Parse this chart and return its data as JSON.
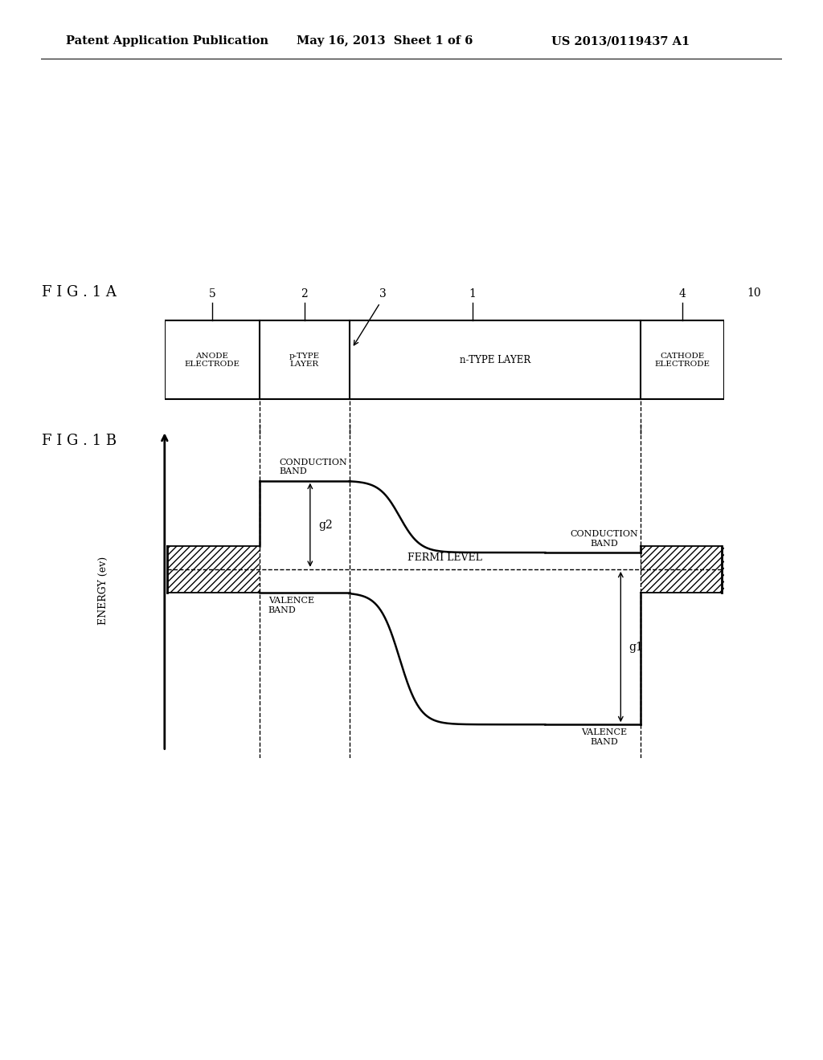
{
  "bg_color": "#ffffff",
  "text_color": "#000000",
  "header_left": "Patent Application Publication",
  "header_mid": "May 16, 2013  Sheet 1 of 6",
  "header_right": "US 2013/0119437 A1",
  "fig1a_label": "F I G . 1 A",
  "fig1b_label": "F I G . 1 B",
  "device_number": "10",
  "energy_ylabel": "ENERGY (ev)",
  "fermi_label": "FERMI LEVEL",
  "p_cond_band_label": "CONDUCTION\nBAND",
  "n_cond_band_label": "CONDUCTION\nBAND",
  "p_val_band_label": "VALENCE\nBAND",
  "n_val_band_label": "VALENCE\nBAND",
  "g1_label": "g1",
  "g2_label": "g2",
  "lw_thick": 1.8,
  "lw_thin": 1.0
}
